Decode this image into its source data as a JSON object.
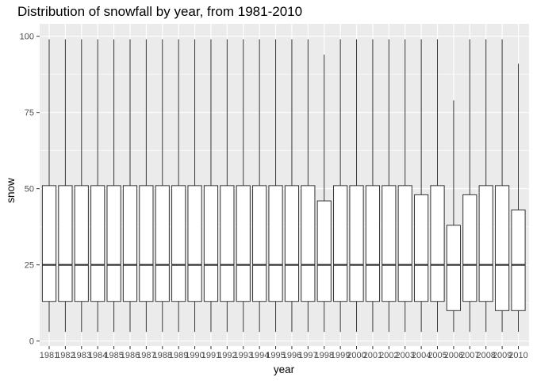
{
  "chart_data": {
    "type": "boxplot",
    "title": "Distribution of snowfall by year, from 1981-2010",
    "xlabel": "year",
    "ylabel": "snow",
    "ylim": [
      0,
      100
    ],
    "yticks": [
      0,
      25,
      50,
      75,
      100
    ],
    "grid": true,
    "legend": "none",
    "categories": [
      "1981",
      "1982",
      "1983",
      "1984",
      "1985",
      "1986",
      "1987",
      "1988",
      "1989",
      "1990",
      "1991",
      "1992",
      "1993",
      "1994",
      "1995",
      "1996",
      "1997",
      "1998",
      "1999",
      "2000",
      "2001",
      "2002",
      "2003",
      "2004",
      "2005",
      "2006",
      "2007",
      "2008",
      "2009",
      "2010"
    ],
    "boxes": [
      {
        "min": 3,
        "q1": 13,
        "median": 25,
        "q3": 51,
        "max": 99
      },
      {
        "min": 3,
        "q1": 13,
        "median": 25,
        "q3": 51,
        "max": 99
      },
      {
        "min": 3,
        "q1": 13,
        "median": 25,
        "q3": 51,
        "max": 99
      },
      {
        "min": 3,
        "q1": 13,
        "median": 25,
        "q3": 51,
        "max": 99
      },
      {
        "min": 3,
        "q1": 13,
        "median": 25,
        "q3": 51,
        "max": 99
      },
      {
        "min": 3,
        "q1": 13,
        "median": 25,
        "q3": 51,
        "max": 99
      },
      {
        "min": 3,
        "q1": 13,
        "median": 25,
        "q3": 51,
        "max": 99
      },
      {
        "min": 3,
        "q1": 13,
        "median": 25,
        "q3": 51,
        "max": 99
      },
      {
        "min": 3,
        "q1": 13,
        "median": 25,
        "q3": 51,
        "max": 99
      },
      {
        "min": 3,
        "q1": 13,
        "median": 25,
        "q3": 51,
        "max": 99
      },
      {
        "min": 3,
        "q1": 13,
        "median": 25,
        "q3": 51,
        "max": 99
      },
      {
        "min": 3,
        "q1": 13,
        "median": 25,
        "q3": 51,
        "max": 99
      },
      {
        "min": 3,
        "q1": 13,
        "median": 25,
        "q3": 51,
        "max": 99
      },
      {
        "min": 3,
        "q1": 13,
        "median": 25,
        "q3": 51,
        "max": 99
      },
      {
        "min": 3,
        "q1": 13,
        "median": 25,
        "q3": 51,
        "max": 99
      },
      {
        "min": 3,
        "q1": 13,
        "median": 25,
        "q3": 51,
        "max": 99
      },
      {
        "min": 3,
        "q1": 13,
        "median": 25,
        "q3": 51,
        "max": 99
      },
      {
        "min": 3,
        "q1": 13,
        "median": 25,
        "q3": 46,
        "max": 94
      },
      {
        "min": 3,
        "q1": 13,
        "median": 25,
        "q3": 51,
        "max": 99
      },
      {
        "min": 3,
        "q1": 13,
        "median": 25,
        "q3": 51,
        "max": 99
      },
      {
        "min": 3,
        "q1": 13,
        "median": 25,
        "q3": 51,
        "max": 99
      },
      {
        "min": 3,
        "q1": 13,
        "median": 25,
        "q3": 51,
        "max": 99
      },
      {
        "min": 3,
        "q1": 13,
        "median": 25,
        "q3": 51,
        "max": 99
      },
      {
        "min": 3,
        "q1": 13,
        "median": 25,
        "q3": 48,
        "max": 99
      },
      {
        "min": 3,
        "q1": 13,
        "median": 25,
        "q3": 51,
        "max": 99
      },
      {
        "min": 3,
        "q1": 10,
        "median": 25,
        "q3": 38,
        "max": 79
      },
      {
        "min": 3,
        "q1": 13,
        "median": 25,
        "q3": 48,
        "max": 99
      },
      {
        "min": 3,
        "q1": 13,
        "median": 25,
        "q3": 51,
        "max": 99
      },
      {
        "min": 3,
        "q1": 10,
        "median": 25,
        "q3": 51,
        "max": 99
      },
      {
        "min": 3,
        "q1": 10,
        "median": 25,
        "q3": 43,
        "max": 91
      }
    ],
    "colors": {
      "panel_background": "#ebebeb",
      "grid_major": "#ffffff",
      "box_fill": "#ffffff",
      "box_stroke": "#333333",
      "tick_text": "#4d4d4d"
    }
  }
}
